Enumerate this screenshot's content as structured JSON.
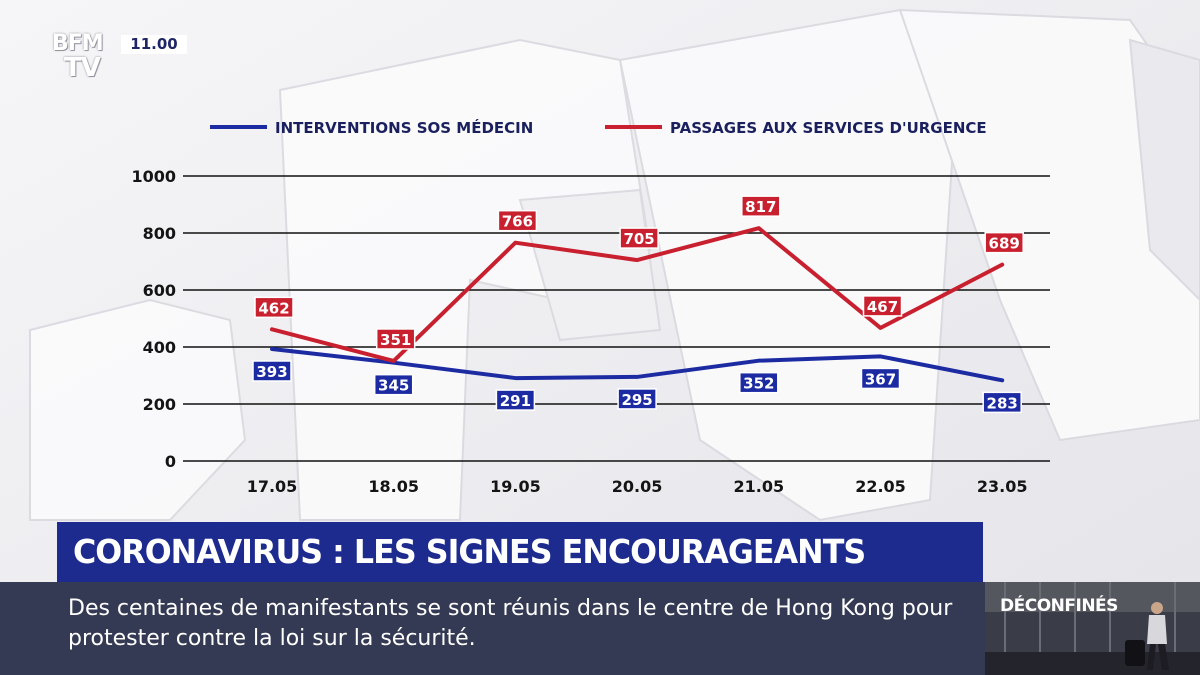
{
  "channel": {
    "logo_line1": "BFM",
    "logo_line2": "TV",
    "time": "11.00"
  },
  "headline": "CORONAVIRUS : LES SIGNES ENCOURAGEANTS",
  "ticker": "Des centaines de manifestants se sont réunis dans le centre de Hong Kong pour protester contre la loi sur la sécurité.",
  "side_panel": {
    "label": "DÉCONFINÉS"
  },
  "chart_data": {
    "type": "line",
    "title": "",
    "xlabel": "",
    "ylabel": "",
    "categories": [
      "17.05",
      "18.05",
      "19.05",
      "20.05",
      "21.05",
      "22.05",
      "23.05"
    ],
    "ylim": [
      0,
      1000
    ],
    "yticks": [
      0,
      200,
      400,
      600,
      800,
      1000
    ],
    "grid": true,
    "legend_position": "top",
    "series": [
      {
        "name": "INTERVENTIONS SOS MÉDECIN",
        "color": "#1d2ba3",
        "values": [
          393,
          345,
          291,
          295,
          352,
          367,
          283
        ]
      },
      {
        "name": "PASSAGES AUX SERVICES D'URGENCE",
        "color": "#c8202f",
        "values": [
          462,
          351,
          766,
          705,
          817,
          467,
          689
        ]
      }
    ]
  }
}
